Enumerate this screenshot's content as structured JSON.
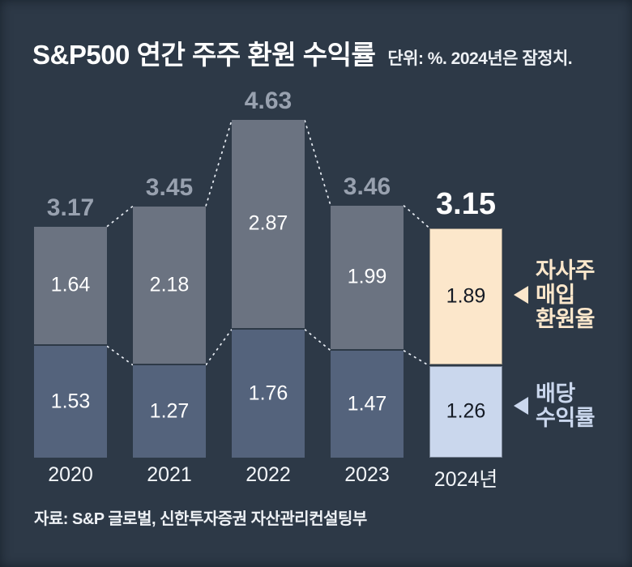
{
  "header": {
    "title": "S&P500 연간 주주 환원 수익률",
    "subtitle": "단위: %. 2024년은 잠정치."
  },
  "legend": {
    "buyback": {
      "label": "자사주\n매입\n환원율"
    },
    "dividend": {
      "label": "배당\n수익률"
    }
  },
  "footer": {
    "source": "자료: S&P 글로벌, 신한투자증권 자산관리컨설팅부"
  },
  "chart_data": {
    "type": "bar",
    "stacked": true,
    "title": "S&P500 연간 주주 환원 수익률",
    "subtitle": "단위: %. 2024년은 잠정치.",
    "unit": "%",
    "categories": [
      "2020",
      "2021",
      "2022",
      "2023",
      "2024년"
    ],
    "series": [
      {
        "name": "자사주 매입 환원율",
        "values": [
          1.64,
          2.18,
          2.87,
          1.99,
          1.89
        ]
      },
      {
        "name": "배당 수익률",
        "values": [
          1.53,
          1.27,
          1.76,
          1.47,
          1.26
        ]
      }
    ],
    "totals": [
      3.17,
      3.45,
      4.63,
      3.46,
      3.15
    ],
    "highlight_index": 4,
    "ylim": [
      0,
      5
    ],
    "grid": false,
    "legend_position": "right",
    "connector_style": "dashed"
  },
  "colors": {
    "background": "#2d3947",
    "bar_buyback": "#6b7381",
    "bar_dividend": "#54637c",
    "bar_buyback_highlight": "#fce7cb",
    "bar_dividend_highlight": "#cad7ed",
    "total_label": "#98a1af",
    "total_label_highlight": "#ffffff",
    "value_label": "#ffffff",
    "value_label_highlight": "#141a24",
    "connector": "#e9eef5",
    "text": "#f5f7fa"
  }
}
